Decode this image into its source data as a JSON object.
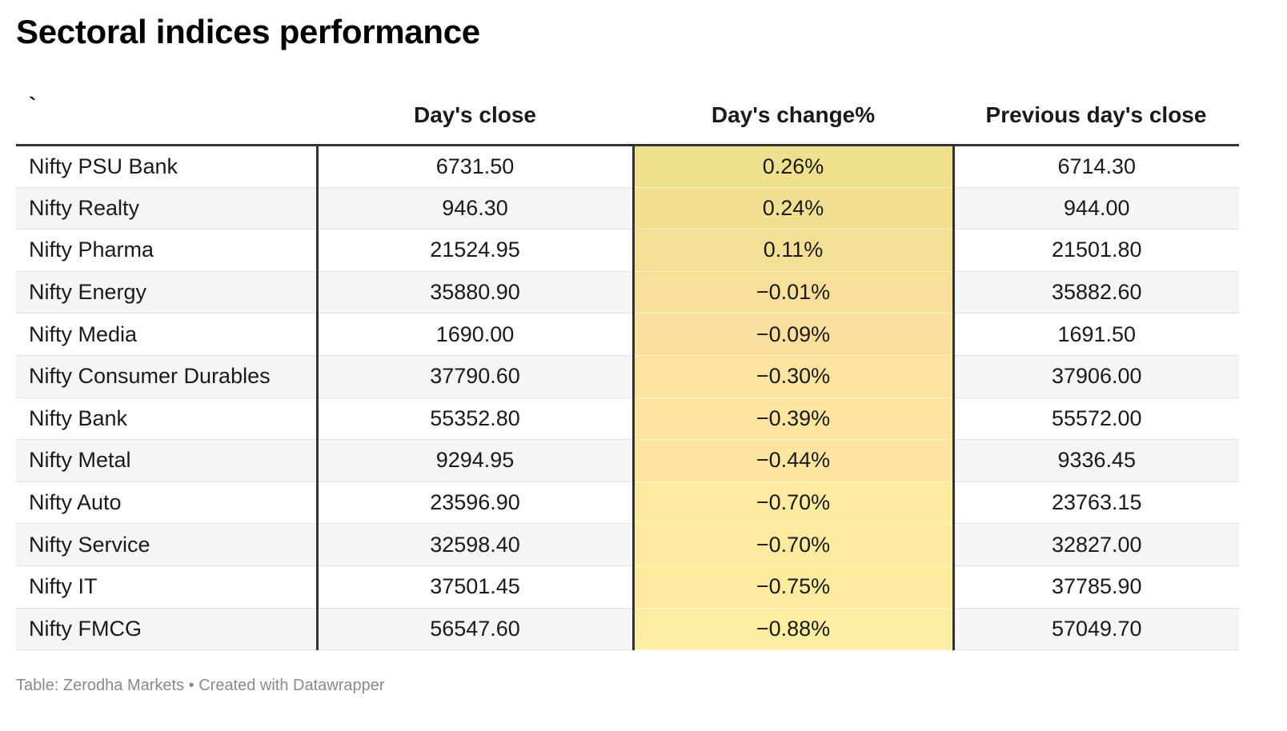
{
  "title": "Sectoral indices performance",
  "footer": {
    "source": "Table: Zerodha Markets • Created with Datawrapper"
  },
  "colors": {
    "heatmap_high": "#efe08e",
    "heatmap_mid": "#fbdf9d",
    "heatmap_low": "#fdeea1",
    "separator": "#333333",
    "zebra": "#f5f5f5"
  },
  "chart_data": {
    "type": "table",
    "title": "Sectoral indices performance",
    "columns": [
      "`",
      "Day's close",
      "Day's change%",
      "Previous day's close"
    ],
    "rows": [
      [
        "Nifty PSU Bank",
        "6731.50",
        "0.26%",
        "6714.30"
      ],
      [
        "Nifty Realty",
        "946.30",
        "0.24%",
        "944.00"
      ],
      [
        "Nifty Pharma",
        "21524.95",
        "0.11%",
        "21501.80"
      ],
      [
        "Nifty Energy",
        "35880.90",
        "−0.01%",
        "35882.60"
      ],
      [
        "Nifty Media",
        "1690.00",
        "−0.09%",
        "1691.50"
      ],
      [
        "Nifty Consumer Durables",
        "37790.60",
        "−0.30%",
        "37906.00"
      ],
      [
        "Nifty Bank",
        "55352.80",
        "−0.39%",
        "55572.00"
      ],
      [
        "Nifty Metal",
        "9294.95",
        "−0.44%",
        "9336.45"
      ],
      [
        "Nifty Auto",
        "23596.90",
        "−0.70%",
        "23763.15"
      ],
      [
        "Nifty Service",
        "32598.40",
        "−0.70%",
        "32827.00"
      ],
      [
        "Nifty IT",
        "37501.45",
        "−0.75%",
        "37785.90"
      ],
      [
        "Nifty FMCG",
        "56547.60",
        "−0.88%",
        "57049.70"
      ]
    ],
    "heatmap_column": "Day's change%",
    "heatmap_values": [
      0.26,
      0.24,
      0.11,
      -0.01,
      -0.09,
      -0.3,
      -0.39,
      -0.44,
      -0.7,
      -0.7,
      -0.75,
      -0.88
    ],
    "heatmap_range": [
      -0.88,
      0.26
    ],
    "source": "Table: Zerodha Markets • Created with Datawrapper"
  }
}
